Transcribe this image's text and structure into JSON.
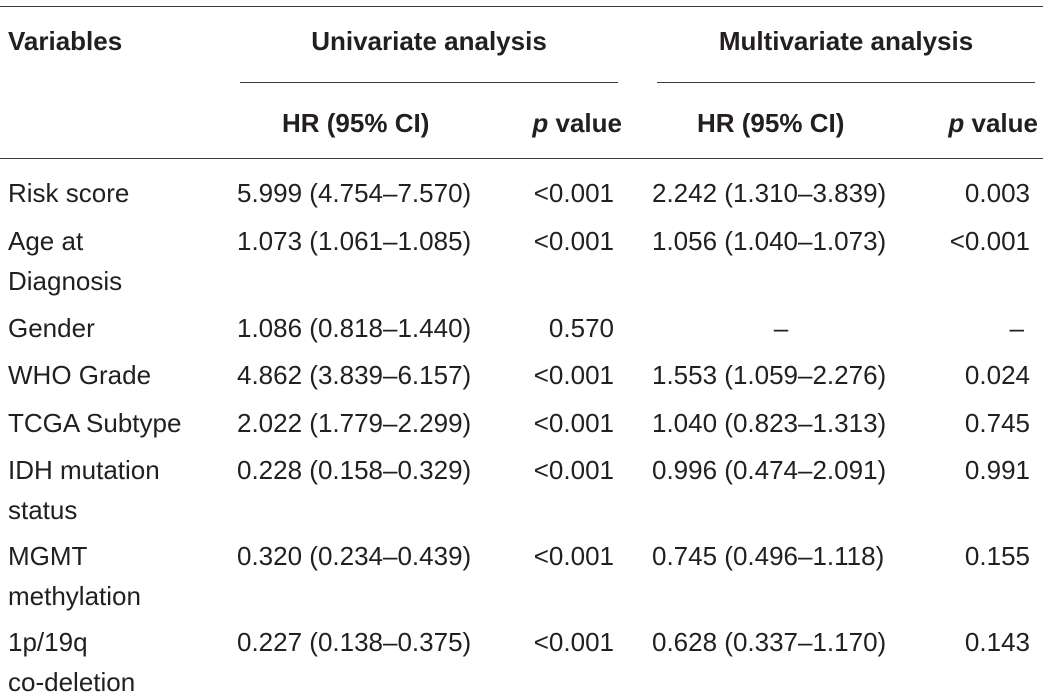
{
  "table": {
    "headers": {
      "variables": "Variables",
      "univariate": "Univariate analysis",
      "multivariate": "Multivariate analysis",
      "hr_uni": "HR (95% CI)",
      "p_uni_italic": "p",
      "p_uni_rest": " value",
      "hr_multi": "HR (95% CI)",
      "p_multi_italic": "p",
      "p_multi_rest": " value"
    },
    "rows": [
      {
        "variable_line1": "Risk score",
        "variable_line2": "",
        "hr_uni": "5.999 (4.754–7.570)",
        "p_uni": "<0.001",
        "hr_multi": "2.242 (1.310–3.839)",
        "p_multi": "0.003"
      },
      {
        "variable_line1": "Age at",
        "variable_line2": "Diagnosis",
        "hr_uni": "1.073 (1.061–1.085)",
        "p_uni": "<0.001",
        "hr_multi": "1.056 (1.040–1.073)",
        "p_multi": "<0.001"
      },
      {
        "variable_line1": "Gender",
        "variable_line2": "",
        "hr_uni": "1.086 (0.818–1.440)",
        "p_uni": "0.570",
        "hr_multi": "–",
        "p_multi": "–"
      },
      {
        "variable_line1": "WHO Grade",
        "variable_line2": "",
        "hr_uni": "4.862 (3.839–6.157)",
        "p_uni": "<0.001",
        "hr_multi": "1.553 (1.059–2.276)",
        "p_multi": "0.024"
      },
      {
        "variable_line1": "TCGA Subtype",
        "variable_line2": "",
        "hr_uni": "2.022 (1.779–2.299)",
        "p_uni": "<0.001",
        "hr_multi": "1.040 (0.823–1.313)",
        "p_multi": "0.745"
      },
      {
        "variable_line1": "IDH mutation",
        "variable_line2": "status",
        "hr_uni": "0.228 (0.158–0.329)",
        "p_uni": "<0.001",
        "hr_multi": "0.996 (0.474–2.091)",
        "p_multi": "0.991"
      },
      {
        "variable_line1": "MGMT",
        "variable_line2": "methylation",
        "hr_uni": "0.320 (0.234–0.439)",
        "p_uni": "<0.001",
        "hr_multi": "0.745 (0.496–1.118)",
        "p_multi": "0.155"
      },
      {
        "variable_line1": "1p/19q",
        "variable_line2": "co-deletion",
        "hr_uni": "0.227 (0.138–0.375)",
        "p_uni": "<0.001",
        "hr_multi": "0.628 (0.337–1.170)",
        "p_multi": "0.143"
      }
    ]
  }
}
